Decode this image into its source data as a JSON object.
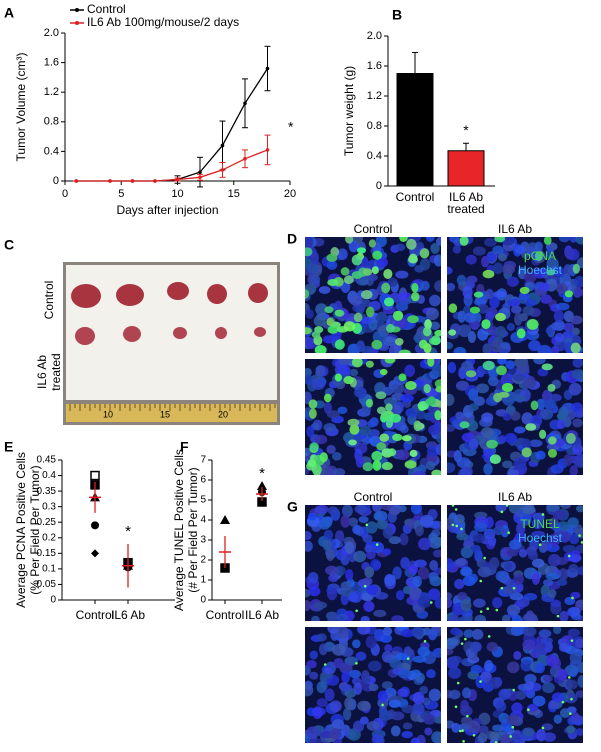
{
  "chart_data": [
    {
      "type": "line",
      "panel_label": "A",
      "y_label": "Tumor Volume (cm³)",
      "x_label": "Days after injection",
      "xlim": [
        0,
        20
      ],
      "xticks": [
        0,
        5,
        10,
        15,
        20
      ],
      "ylim": [
        0,
        2
      ],
      "yticks": [
        0,
        0.4,
        0.8,
        1.2,
        1.6,
        {
          "value": 2,
          "label": "2.0"
        }
      ],
      "x": [
        1,
        4,
        6,
        8,
        10,
        12,
        14,
        16,
        18
      ],
      "series": [
        {
          "name": "Control",
          "color": "#000000",
          "values": [
            0,
            0,
            0,
            0,
            0.02,
            0.12,
            0.48,
            1.05,
            1.52
          ],
          "errors": [
            0,
            0,
            0,
            0,
            0.05,
            0.2,
            0.33,
            0.33,
            0.3
          ]
        },
        {
          "name": "IL6 Ab 100mg/mouse/2 days",
          "color": "#e02020",
          "values": [
            0,
            0,
            0,
            0,
            0.02,
            0.05,
            0.15,
            0.3,
            0.42
          ],
          "errors": [
            0,
            0,
            0,
            0,
            0.02,
            0.04,
            0.1,
            0.12,
            0.2
          ]
        }
      ],
      "annotation": "*"
    },
    {
      "type": "bar",
      "panel_label": "B",
      "y_label": "Tumor weight  (g)",
      "categories": [
        "Control",
        "IL6 Ab treated"
      ],
      "values": [
        1.5,
        0.47
      ],
      "errors": [
        0.28,
        0.1
      ],
      "colors": [
        "#000000",
        "#e8262a"
      ],
      "ylim": [
        0,
        2
      ],
      "yticks": [
        0,
        0.4,
        0.8,
        1.2,
        1.6,
        {
          "value": 2,
          "label": "2.0"
        }
      ],
      "annotation": "*"
    },
    {
      "type": "dot",
      "panel_label": "E",
      "y_label": [
        "Average PCNA Positive Cells",
        "(% Per Field Per Tumor)"
      ],
      "categories": [
        "Control",
        "IL6 Ab"
      ],
      "ylim": [
        0,
        0.45
      ],
      "yticks": [
        0,
        0.05,
        0.1,
        0.15,
        0.2,
        0.25,
        0.3,
        0.35,
        0.4,
        0.45
      ],
      "series": [
        {
          "marker": "open-square",
          "values": [
            0.4,
            null
          ]
        },
        {
          "marker": "square",
          "values": [
            0.37,
            0.12
          ]
        },
        {
          "marker": "triangle",
          "values": [
            0.33,
            0.11
          ]
        },
        {
          "marker": "circle",
          "values": [
            0.24,
            0.105
          ]
        },
        {
          "marker": "diamond",
          "values": [
            0.15,
            null
          ]
        }
      ],
      "mean": {
        "color": "#e02020",
        "values": [
          0.33,
          0.11
        ],
        "errors": [
          0.05,
          0.07
        ]
      },
      "annotation": "*"
    },
    {
      "type": "dot",
      "panel_label": "F",
      "y_label": [
        "Average TUNEL Positive Cells",
        "(# Per Field Per Tumor)"
      ],
      "categories": [
        "Control",
        "IL6 Ab"
      ],
      "ylim": [
        0,
        7
      ],
      "yticks": [
        0,
        1,
        2,
        3,
        4,
        5,
        6,
        7
      ],
      "series": [
        {
          "marker": "triangle",
          "values": [
            4,
            5.7
          ]
        },
        {
          "marker": "circle",
          "values": [
            null,
            5.4
          ]
        },
        {
          "marker": "square",
          "values": [
            1.6,
            4.9
          ]
        }
      ],
      "mean": {
        "color": "#e02020",
        "values": [
          2.4,
          5.3
        ],
        "errors": [
          0.8,
          0.35
        ]
      },
      "annotation": "*"
    }
  ],
  "photo": {
    "panel_label": "C",
    "row_labels": [
      [
        "Control"
      ],
      [
        "IL6 Ab",
        "treated"
      ]
    ],
    "ruler_labels": [
      "10",
      "15",
      "20"
    ]
  },
  "micrographs": [
    {
      "panel_label": "D",
      "columns": [
        "Control",
        "IL6 Ab"
      ],
      "stains": [
        "pCNA",
        "Hoechst"
      ]
    },
    {
      "panel_label": "G",
      "columns": [
        "Control",
        "IL6 Ab"
      ],
      "stains": [
        "TUNEL",
        "Hoechst"
      ]
    }
  ]
}
